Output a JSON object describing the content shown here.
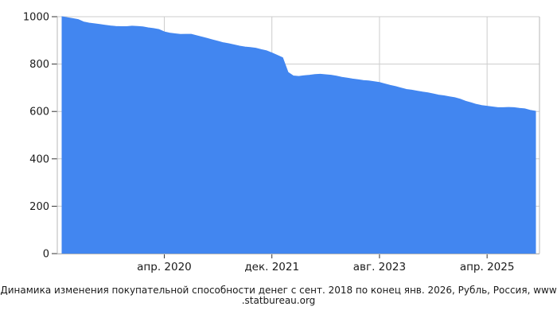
{
  "chart_data": {
    "type": "area",
    "caption_line1": "Динамика изменения покупательной способности денег с сент. 2018 по конец янв. 2026, Рубль, Россия, www",
    "caption_line2": ".statbureau.org",
    "ylim": [
      0,
      1000
    ],
    "y_ticks": [
      0,
      200,
      400,
      600,
      800,
      1000
    ],
    "x_ticks": [
      {
        "label": "апр. 2020",
        "month_index": 19
      },
      {
        "label": "дек. 2021",
        "month_index": 39
      },
      {
        "label": "авг. 2023",
        "month_index": 59
      },
      {
        "label": "апр. 2025",
        "month_index": 79
      }
    ],
    "grid": true,
    "legend": "none",
    "area_color": "#4286f0",
    "grid_color": "#cccccc",
    "border_color": "#b7b7b7",
    "tick_color": "#333333",
    "x_start": "сент. 2018",
    "x_end": "янв. 2026",
    "months": [
      "сент. 2018",
      "окт. 2018",
      "нояб. 2018",
      "дек. 2018",
      "янв. 2019",
      "февр. 2019",
      "март 2019",
      "апр. 2019",
      "май 2019",
      "июнь 2019",
      "июль 2019",
      "авг. 2019",
      "сент. 2019",
      "окт. 2019",
      "нояб. 2019",
      "дек. 2019",
      "янв. 2020",
      "февр. 2020",
      "март 2020",
      "апр. 2020",
      "май 2020",
      "июнь 2020",
      "июль 2020",
      "авг. 2020",
      "сент. 2020",
      "окт. 2020",
      "нояб. 2020",
      "дек. 2020",
      "янв. 2021",
      "февр. 2021",
      "март 2021",
      "апр. 2021",
      "май 2021",
      "июнь 2021",
      "июль 2021",
      "авг. 2021",
      "сент. 2021",
      "окт. 2021",
      "нояб. 2021",
      "дек. 2021",
      "янв. 2022",
      "февр. 2022",
      "март 2022",
      "апр. 2022",
      "май 2022",
      "июнь 2022",
      "июль 2022",
      "авг. 2022",
      "сент. 2022",
      "окт. 2022",
      "нояб. 2022",
      "дек. 2022",
      "янв. 2023",
      "февр. 2023",
      "март 2023",
      "апр. 2023",
      "май 2023",
      "июнь 2023",
      "июль 2023",
      "авг. 2023",
      "сент. 2023",
      "окт. 2023",
      "нояб. 2023",
      "дек. 2023",
      "янв. 2024",
      "февр. 2024",
      "март 2024",
      "апр. 2024",
      "май 2024",
      "июнь 2024",
      "июль 2024",
      "авг. 2024",
      "сент. 2024",
      "окт. 2024",
      "нояб. 2024",
      "дек. 2024",
      "янв. 2025",
      "февр. 2025",
      "март 2025",
      "апр. 2025",
      "май 2025",
      "июнь 2025",
      "июль 2025",
      "авг. 2025",
      "сент. 2025",
      "окт. 2025",
      "нояб. 2025",
      "дек. 2025",
      "янв. 2026"
    ],
    "values": [
      1000,
      996,
      992,
      988,
      978,
      973,
      970,
      967,
      964,
      961,
      959,
      958,
      958,
      960,
      959,
      957,
      953,
      950,
      946,
      936,
      931,
      928,
      925,
      926,
      926,
      920,
      914,
      908,
      902,
      896,
      890,
      886,
      881,
      876,
      872,
      870,
      867,
      861,
      856,
      847,
      837,
      827,
      765,
      750,
      748,
      751,
      753,
      756,
      757,
      755,
      753,
      749,
      744,
      741,
      737,
      734,
      731,
      729,
      726,
      722,
      716,
      710,
      705,
      699,
      693,
      690,
      686,
      682,
      679,
      674,
      669,
      666,
      662,
      658,
      652,
      643,
      637,
      630,
      625,
      622,
      619,
      616,
      616,
      617,
      616,
      613,
      611,
      605,
      601
    ]
  }
}
